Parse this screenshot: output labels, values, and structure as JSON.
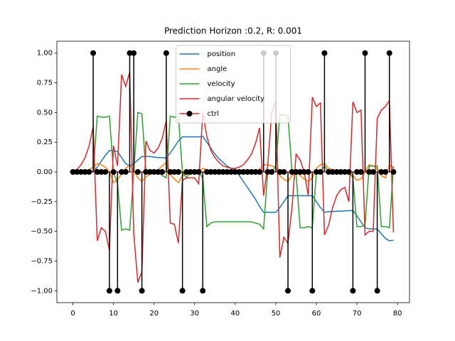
{
  "chart_data": {
    "type": "line",
    "title": "Prediction Horizon :0.2, R: 0.001",
    "x": [
      0,
      1,
      2,
      3,
      4,
      5,
      6,
      7,
      8,
      9,
      10,
      11,
      12,
      13,
      14,
      15,
      16,
      17,
      18,
      19,
      20,
      21,
      22,
      23,
      24,
      25,
      26,
      27,
      28,
      29,
      30,
      31,
      32,
      33,
      34,
      35,
      36,
      37,
      38,
      39,
      40,
      41,
      42,
      43,
      44,
      45,
      46,
      47,
      48,
      49,
      50,
      51,
      52,
      53,
      54,
      55,
      56,
      57,
      58,
      59,
      60,
      61,
      62,
      63,
      64,
      65,
      66,
      67,
      68,
      69,
      70,
      71,
      72,
      73,
      74,
      75,
      76,
      77,
      78,
      79
    ],
    "series": [
      {
        "name": "position",
        "kind": "line",
        "color": "#1f77b4",
        "values": [
          0,
          0,
          0,
          0,
          0,
          0,
          0.04,
          0.09,
          0.14,
          0.18,
          0.18,
          0.17,
          0.12,
          0.07,
          0.05,
          0.07,
          0.1,
          0.13,
          0.13,
          0.13,
          0.125,
          0.12,
          0.12,
          0.115,
          0.16,
          0.21,
          0.26,
          0.295,
          0.295,
          0.295,
          0.295,
          0.295,
          0.3,
          0.25,
          0.2,
          0.15,
          0.11,
          0.08,
          0.05,
          0.03,
          0.02,
          -0.03,
          -0.08,
          -0.13,
          -0.18,
          -0.23,
          -0.29,
          -0.34,
          -0.34,
          -0.34,
          -0.34,
          -0.3,
          -0.25,
          -0.2,
          -0.2,
          -0.2,
          -0.2,
          -0.2,
          -0.2,
          -0.2,
          -0.25,
          -0.3,
          -0.34,
          -0.335,
          -0.333,
          -0.33,
          -0.33,
          -0.328,
          -0.326,
          -0.325,
          -0.37,
          -0.42,
          -0.47,
          -0.48,
          -0.48,
          -0.48,
          -0.52,
          -0.56,
          -0.58,
          -0.575
        ]
      },
      {
        "name": "angle",
        "kind": "line",
        "color": "#ff7f0e",
        "values": [
          0,
          0,
          0,
          0.01,
          0.02,
          0.04,
          0.07,
          0.06,
          0.04,
          0,
          -0.09,
          -0.06,
          -0.02,
          0.03,
          0.06,
          0.01,
          -0.05,
          -0.08,
          -0.04,
          -0.02,
          0,
          0.02,
          0.05,
          0.08,
          -0.02,
          -0.06,
          -0.09,
          -0.03,
          -0.02,
          -0.01,
          0,
          0,
          0.03,
          0.02,
          0.01,
          0.01,
          0,
          0,
          0,
          0,
          0,
          0,
          0,
          0,
          0,
          0,
          0.02,
          0.06,
          0.06,
          0.05,
          0.04,
          -0.03,
          -0.06,
          -0.08,
          -0.03,
          0,
          -0.03,
          -0.06,
          -0.08,
          -0.05,
          0.03,
          0.06,
          0.07,
          0.03,
          0.02,
          0.01,
          0,
          0,
          0,
          -0.03,
          -0.07,
          -0.06,
          0,
          0.06,
          0.05,
          0.03,
          -0.03,
          -0.05,
          0.06,
          0.03
        ]
      },
      {
        "name": "velocity",
        "kind": "line",
        "color": "#2ca02c",
        "values": [
          0,
          0,
          0,
          0,
          0,
          0,
          0.47,
          0.46,
          0.46,
          0.47,
          0,
          -0.1,
          -0.49,
          -0.48,
          -0.49,
          0,
          0.5,
          0.49,
          0,
          0,
          0,
          0,
          -0.03,
          -0.05,
          0.47,
          0.46,
          0.47,
          0,
          -0.05,
          0,
          0,
          0,
          -0.05,
          -0.46,
          -0.43,
          -0.42,
          -0.42,
          -0.42,
          -0.42,
          -0.42,
          -0.42,
          -0.42,
          -0.42,
          -0.42,
          -0.42,
          -0.43,
          -0.44,
          -0.48,
          0,
          0,
          0.05,
          0.48,
          0.48,
          0.47,
          0,
          -0.02,
          -0.47,
          -0.47,
          -0.46,
          -0.47,
          0,
          0,
          0.05,
          0,
          0,
          0,
          0,
          0,
          0,
          -0.05,
          -0.46,
          -0.46,
          -0.45,
          0.05,
          0.05,
          0.05,
          -0.46,
          -0.46,
          -0.47,
          0.05
        ]
      },
      {
        "name": "angular velocity",
        "kind": "line",
        "color": "#d62728",
        "values": [
          0,
          0.02,
          0.06,
          0.12,
          0.22,
          0.38,
          -0.58,
          -0.47,
          -0.5,
          -0.66,
          0.22,
          0.05,
          0.82,
          0.72,
          0.84,
          -0.52,
          -0.93,
          -0.84,
          0.26,
          0.18,
          0.16,
          0.2,
          0.28,
          0.43,
          -0.43,
          -0.44,
          -0.6,
          -0.07,
          -0.05,
          -0.05,
          -0.05,
          -0.1,
          0.5,
          0.3,
          0.18,
          0.12,
          0.08,
          0.05,
          0.04,
          0.03,
          0.03,
          0.04,
          0.06,
          0.1,
          0.15,
          0.24,
          0.37,
          -0.2,
          0.05,
          0.5,
          0.6,
          -0.72,
          -0.55,
          -0.6,
          -0.3,
          0.15,
          0.1,
          0,
          -0.2,
          0.63,
          0.55,
          0.58,
          -0.53,
          -0.45,
          -0.3,
          -0.2,
          -0.15,
          -0.13,
          -0.25,
          0.59,
          0.5,
          0.52,
          -0.53,
          -0.5,
          -0.5,
          0.45,
          0.52,
          0.55,
          0.6,
          -0.51
        ]
      },
      {
        "name": "ctrl",
        "kind": "stem",
        "color": "#000000",
        "baseline_color": "#d62728",
        "values": [
          0,
          0,
          0,
          0,
          0,
          1,
          0,
          0,
          0,
          -1,
          0,
          -1,
          0,
          0,
          1,
          1,
          0,
          -1,
          0,
          0,
          0,
          0,
          0,
          1,
          0,
          0,
          0,
          -1,
          0,
          0,
          0,
          0,
          -1,
          0,
          0,
          0,
          0,
          0,
          0,
          0,
          0,
          0,
          0,
          0,
          0,
          0,
          0,
          1,
          0,
          0,
          1,
          0,
          0,
          -1,
          0,
          0,
          0,
          0,
          0,
          -1,
          0,
          0,
          1,
          0,
          0,
          0,
          0,
          0,
          0,
          -1,
          0,
          0,
          1,
          0,
          0,
          -1,
          0,
          0,
          1,
          0
        ]
      }
    ],
    "xlim": [
      -3.95,
      82.95
    ],
    "xticks": [
      0,
      10,
      20,
      30,
      40,
      50,
      60,
      70,
      80
    ],
    "ylim": [
      -1.1,
      1.1
    ],
    "yticks": [
      {
        "value": -1,
        "label": "−1.00"
      },
      {
        "value": -0.75,
        "label": "−0.75"
      },
      {
        "value": -0.5,
        "label": "−0.50"
      },
      {
        "value": -0.25,
        "label": "−0.25"
      },
      {
        "value": 0,
        "label": "0.00"
      },
      {
        "value": 0.25,
        "label": "0.25"
      },
      {
        "value": 0.5,
        "label": "0.50"
      },
      {
        "value": 0.75,
        "label": "0.75"
      },
      {
        "value": 1,
        "label": "1.00"
      }
    ],
    "legend": "upper center",
    "grid": false
  }
}
